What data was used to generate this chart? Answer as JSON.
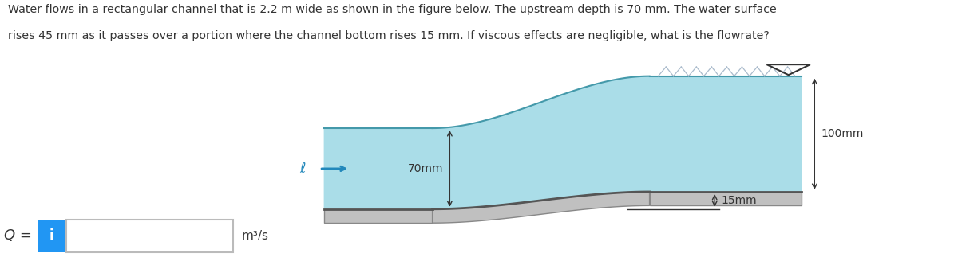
{
  "title_line1": "Water flows in a rectangular channel that is 2.2 m wide as shown in the figure below. The upstream depth is 70 mm. The water surface",
  "title_line2": "rises 45 mm as it passes over a portion where the channel bottom rises 15 mm. If viscous effects are negligible, what is the flowrate?",
  "water_color": "#aadde8",
  "slab_color": "#c0c0c0",
  "slab_edge": "#888888",
  "bottom_line_color": "#555555",
  "surface_line_color": "#4499aa",
  "hatch_color": "#aabbcc",
  "dim_arrow_color": "#333333",
  "flow_arrow_color": "#2288bb",
  "text_color": "#333333",
  "label_70mm": "70mm",
  "label_100mm": "100mm",
  "label_15mm": "15mm",
  "label_flow": "ℓ",
  "label_Q": "Q =",
  "label_units": "m³/s",
  "input_box_color": "#2196F3",
  "input_box_text": "i",
  "fig_width": 12.0,
  "fig_height": 3.33,
  "dpi": 100
}
